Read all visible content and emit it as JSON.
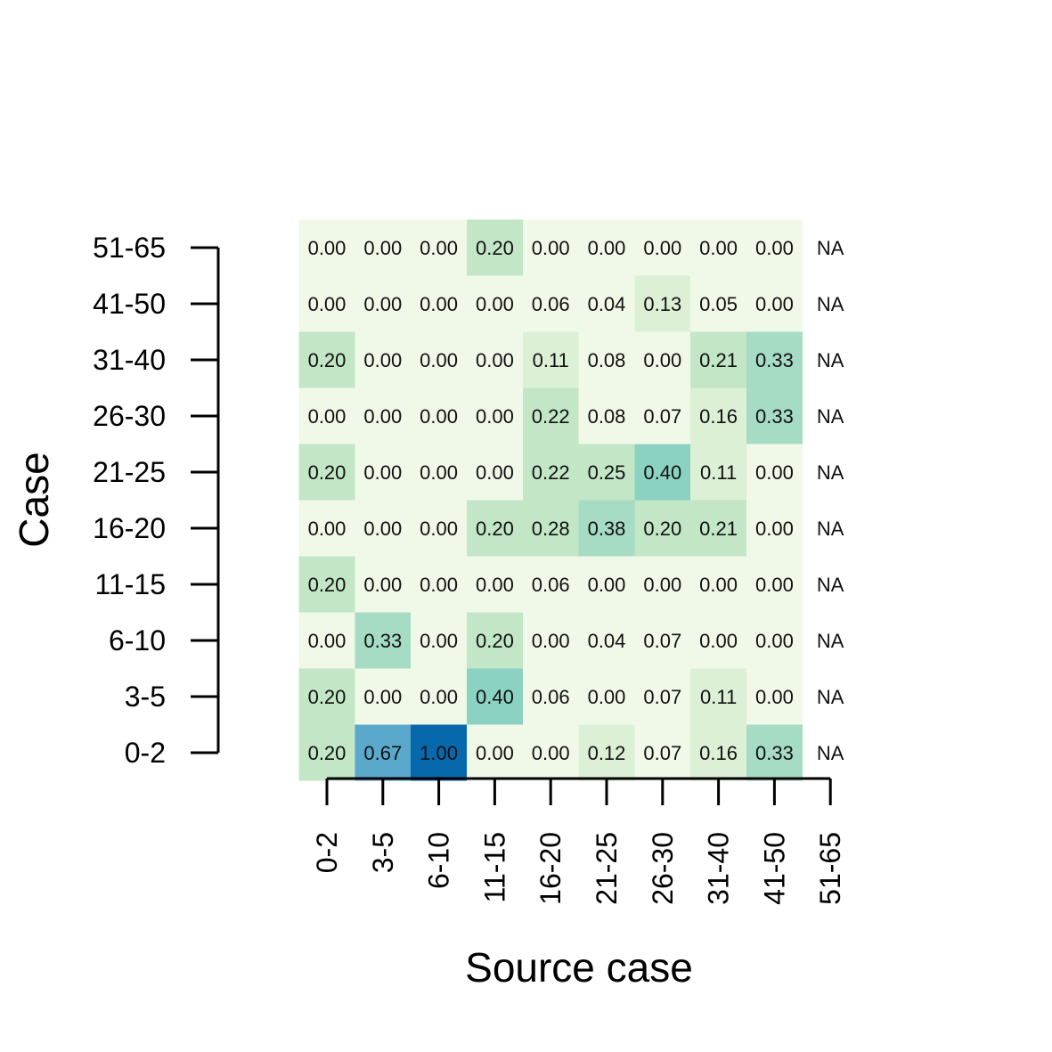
{
  "chart_data": {
    "type": "heatmap",
    "title": "",
    "xlabel": "Source case",
    "ylabel": "Case",
    "x_categories": [
      "0-2",
      "3-5",
      "6-10",
      "11-15",
      "16-20",
      "21-25",
      "26-30",
      "31-40",
      "41-50",
      "51-65"
    ],
    "y_categories": [
      "0-2",
      "3-5",
      "6-10",
      "11-15",
      "16-20",
      "21-25",
      "26-30",
      "31-40",
      "41-50",
      "51-65"
    ],
    "values": [
      [
        0.2,
        0.67,
        1.0,
        0.0,
        0.0,
        0.12,
        0.07,
        0.16,
        0.33,
        null
      ],
      [
        0.2,
        0.0,
        0.0,
        0.4,
        0.06,
        0.0,
        0.07,
        0.11,
        0.0,
        null
      ],
      [
        0.0,
        0.33,
        0.0,
        0.2,
        0.0,
        0.04,
        0.07,
        0.0,
        0.0,
        null
      ],
      [
        0.2,
        0.0,
        0.0,
        0.0,
        0.06,
        0.0,
        0.0,
        0.0,
        0.0,
        null
      ],
      [
        0.0,
        0.0,
        0.0,
        0.2,
        0.28,
        0.38,
        0.2,
        0.21,
        0.0,
        null
      ],
      [
        0.2,
        0.0,
        0.0,
        0.0,
        0.22,
        0.25,
        0.4,
        0.11,
        0.0,
        null
      ],
      [
        0.0,
        0.0,
        0.0,
        0.0,
        0.22,
        0.08,
        0.07,
        0.16,
        0.33,
        null
      ],
      [
        0.2,
        0.0,
        0.0,
        0.0,
        0.11,
        0.08,
        0.0,
        0.21,
        0.33,
        null
      ],
      [
        0.0,
        0.0,
        0.0,
        0.0,
        0.06,
        0.04,
        0.13,
        0.05,
        0.0,
        null
      ],
      [
        0.0,
        0.0,
        0.0,
        0.2,
        0.0,
        0.0,
        0.0,
        0.0,
        0.0,
        null
      ]
    ],
    "na_label": "NA",
    "color_scale": {
      "breaks": [
        0.1,
        0.2,
        0.3,
        0.4,
        0.5,
        0.6,
        0.7,
        0.8,
        0.9
      ],
      "colors": [
        "#f0f9e8",
        "#dcf0d6",
        "#c2e6c6",
        "#a6dcc4",
        "#8cd2c2",
        "#74c4c8",
        "#5aa9cc",
        "#448fc4",
        "#2b73b5",
        "#0868ac"
      ]
    },
    "grid": false,
    "legend": "none"
  }
}
